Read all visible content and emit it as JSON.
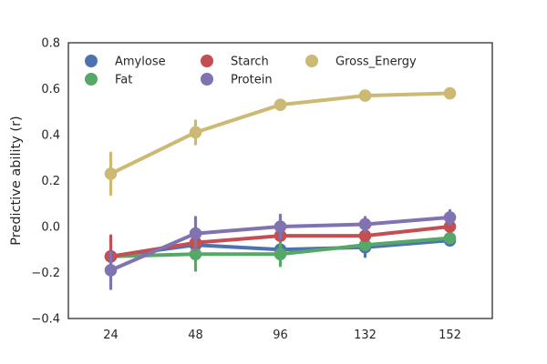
{
  "chart_data": {
    "type": "line",
    "title": "",
    "xlabel": "",
    "ylabel": "Predictive ability (r)",
    "categories": [
      "24",
      "48",
      "96",
      "132",
      "152"
    ],
    "ylim": [
      -0.4,
      0.8
    ],
    "yticks": [
      "−0.4",
      "−0.2",
      "0.0",
      "0.2",
      "0.4",
      "0.6",
      "0.8"
    ],
    "ytick_values": [
      -0.4,
      -0.2,
      0.0,
      0.2,
      0.4,
      0.6,
      0.8
    ],
    "grid": false,
    "legend_position": "top-left",
    "series": [
      {
        "name": "Amylose",
        "color": "#4c72b0",
        "values": [
          -0.13,
          -0.08,
          -0.1,
          -0.09,
          -0.06
        ],
        "err": [
          0.02,
          0.02,
          0.02,
          0.04,
          0.02
        ]
      },
      {
        "name": "Fat",
        "color": "#55a868",
        "values": [
          -0.13,
          -0.12,
          -0.12,
          -0.08,
          -0.05
        ],
        "err": [
          0.02,
          0.07,
          0.05,
          0.02,
          0.02
        ]
      },
      {
        "name": "Starch",
        "color": "#c44e52",
        "values": [
          -0.13,
          -0.07,
          -0.04,
          -0.04,
          0.0
        ],
        "err": [
          0.09,
          0.02,
          0.02,
          0.02,
          0.02
        ]
      },
      {
        "name": "Protein",
        "color": "#8172b2",
        "values": [
          -0.19,
          -0.03,
          0.0,
          0.01,
          0.04
        ],
        "err": [
          0.08,
          0.07,
          0.05,
          0.03,
          0.03
        ]
      },
      {
        "name": "Gross_Energy",
        "color": "#ccb974",
        "values": [
          0.23,
          0.41,
          0.53,
          0.57,
          0.58
        ],
        "err": [
          0.09,
          0.05,
          0.02,
          0.01,
          0.01
        ]
      }
    ],
    "legend_order": [
      "Amylose",
      "Starch",
      "Gross_Energy",
      "Fat",
      "Protein"
    ]
  }
}
